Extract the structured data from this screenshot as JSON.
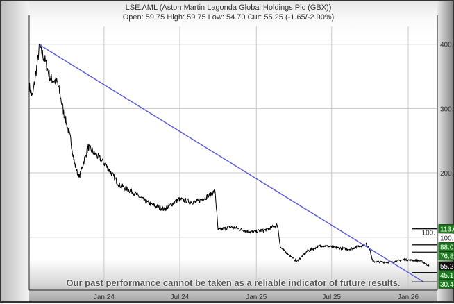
{
  "header": {
    "title": "LSE:AML (Aston Martin Lagonda Global Holdings Plc (GBX))",
    "quote": "Open: 59.75 High: 59.75 Low: 54.70 Cur: 55.25 (-1.65/-2.90%)"
  },
  "disclaimer": "Our past performance cannot be taken as a reliable indicator of future results.",
  "chart_data": {
    "type": "line",
    "title": "LSE:AML (Aston Martin Lagonda Global Holdings Plc (GBX))",
    "xlim": [
      "2023-07-05",
      "2026-03-12"
    ],
    "ylim": [
      22,
      445
    ],
    "grid": true,
    "x_ticks": [
      {
        "date": "2024-01-01",
        "label": "Jan 24"
      },
      {
        "date": "2024-07-01",
        "label": "Jul 24"
      },
      {
        "date": "2025-01-01",
        "label": "Jan 25"
      },
      {
        "date": "2025-07-01",
        "label": "Jul 25"
      },
      {
        "date": "2026-01-01",
        "label": "Jan 26"
      }
    ],
    "y_ticks": [
      {
        "value": 100,
        "label": "100."
      },
      {
        "value": 200,
        "label": "200."
      },
      {
        "value": 300,
        "label": "300."
      },
      {
        "value": 400,
        "label": "400."
      }
    ],
    "price_series": [
      [
        "2023-07-05",
        335
      ],
      [
        "2023-07-13",
        318
      ],
      [
        "2023-07-30",
        396
      ],
      [
        "2023-08-12",
        375
      ],
      [
        "2023-08-24",
        348
      ],
      [
        "2023-09-11",
        340
      ],
      [
        "2023-09-26",
        294
      ],
      [
        "2023-10-13",
        251
      ],
      [
        "2023-10-22",
        215
      ],
      [
        "2023-11-02",
        192
      ],
      [
        "2023-11-12",
        215
      ],
      [
        "2023-11-24",
        240
      ],
      [
        "2023-12-19",
        224
      ],
      [
        "2024-01-04",
        213
      ],
      [
        "2024-02-07",
        181
      ],
      [
        "2024-03-11",
        170
      ],
      [
        "2024-04-13",
        154
      ],
      [
        "2024-05-25",
        143
      ],
      [
        "2024-06-28",
        159
      ],
      [
        "2024-08-08",
        154
      ],
      [
        "2024-09-11",
        165
      ],
      [
        "2024-09-24",
        172
      ],
      [
        "2024-10-01",
        111
      ],
      [
        "2024-10-31",
        116
      ],
      [
        "2024-12-20",
        108
      ],
      [
        "2025-01-22",
        111
      ],
      [
        "2025-02-21",
        119
      ],
      [
        "2025-02-28",
        84
      ],
      [
        "2025-04-08",
        62
      ],
      [
        "2025-05-03",
        78
      ],
      [
        "2025-06-06",
        87
      ],
      [
        "2025-07-09",
        84
      ],
      [
        "2025-08-11",
        81
      ],
      [
        "2025-09-21",
        89
      ],
      [
        "2025-09-29",
        85
      ],
      [
        "2025-10-08",
        62
      ],
      [
        "2025-11-19",
        61
      ],
      [
        "2025-12-22",
        65
      ],
      [
        "2026-02-02",
        63
      ],
      [
        "2026-02-20",
        55.25
      ]
    ],
    "trendline": {
      "from": [
        "2023-07-30",
        399
      ],
      "to": [
        "2026-02-07",
        30.4
      ],
      "color": "#6060d8"
    },
    "price_color": "#000000",
    "levels": [
      {
        "value": 113.0,
        "label": "113.0",
        "style": "green",
        "tick": true
      },
      {
        "value": 100.0,
        "label": "100.0",
        "style": "plain",
        "tick": false
      },
      {
        "value": 88.0,
        "label": "88.0",
        "style": "green",
        "tick": true
      },
      {
        "value": 76.8,
        "label": "76.8",
        "style": "green",
        "tick": true
      },
      {
        "value": 55.25,
        "label": "55.2",
        "style": "current",
        "tick": false
      },
      {
        "value": 45.1,
        "label": "45.1",
        "style": "green",
        "tick": true
      },
      {
        "value": 30.4,
        "label": "30.4",
        "style": "green",
        "tick": true
      }
    ],
    "level_colors": {
      "green": "#1e7a1e",
      "current": "#111111",
      "plain": "#ffffff"
    }
  }
}
